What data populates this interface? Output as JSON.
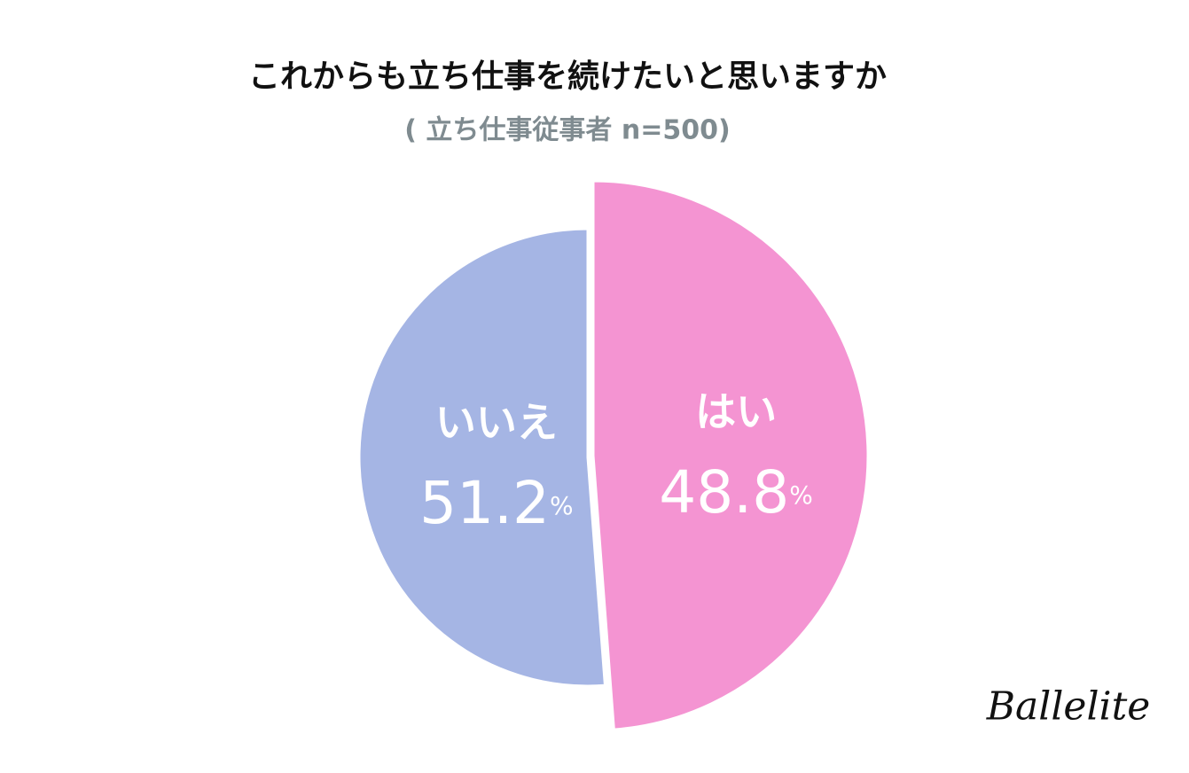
{
  "chart_data": {
    "type": "pie",
    "title": "これからも立ち仕事を続けたいと思いますか",
    "subtitle": "( 立ち仕事従事者 n=500)",
    "categories": [
      "はい",
      "いいえ"
    ],
    "values": [
      48.8,
      51.2
    ],
    "value_labels": [
      "48.8%",
      "51.2%"
    ],
    "colors": [
      "#f494d2",
      "#a5b5e4"
    ]
  },
  "brand": "Ballelite"
}
